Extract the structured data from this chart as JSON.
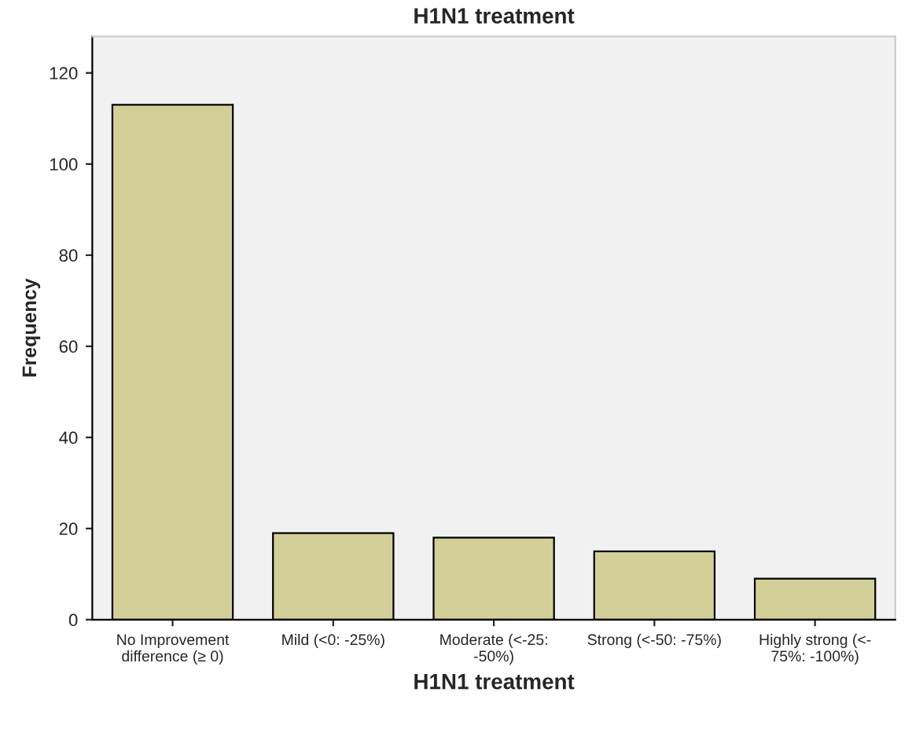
{
  "chart_data": {
    "type": "bar",
    "title": "H1N1 treatment",
    "xlabel": "H1N1 treatment",
    "ylabel": "Frequency",
    "categories": [
      "No Improvement\ndifference (≥ 0)",
      "Mild (<0: -25%)",
      "Moderate (<-25:\n-50%)",
      "Strong (<-50: -75%)",
      "Highly strong (<-\n75%: -100%)"
    ],
    "values": [
      113,
      19,
      18,
      15,
      9
    ],
    "color": "#d3cf98",
    "ylim": [
      0,
      128
    ],
    "yticks": [
      0,
      20,
      40,
      60,
      80,
      100,
      120
    ],
    "grid": false
  }
}
